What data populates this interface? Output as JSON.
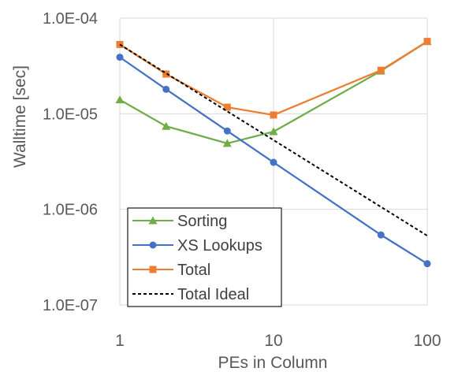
{
  "chart_data": {
    "type": "line",
    "xlabel": "PEs in Column",
    "ylabel": "Walltime [sec]",
    "x_scale": "log",
    "y_scale": "log",
    "xlim": [
      1,
      100
    ],
    "ylim": [
      1e-07,
      0.0001
    ],
    "x_ticks": [
      1,
      10,
      100
    ],
    "x_tick_labels": [
      "1",
      "10",
      "100"
    ],
    "y_ticks": [
      1e-07,
      1e-06,
      1e-05,
      0.0001
    ],
    "y_tick_labels": [
      "1.0E-07",
      "1.0E-06",
      "1.0E-05",
      "1.0E-04"
    ],
    "grid": true,
    "legend_position": "bottom-left",
    "series": [
      {
        "name": "Sorting",
        "color": "#70ad47",
        "marker": "triangle",
        "dash": "solid",
        "x": [
          1,
          2,
          5,
          10,
          50,
          100
        ],
        "y": [
          1.4e-05,
          7.4e-06,
          4.9e-06,
          6.5e-06,
          2.8e-05,
          5.7e-05
        ]
      },
      {
        "name": "XS Lookups",
        "color": "#4472c4",
        "marker": "circle",
        "dash": "solid",
        "x": [
          1,
          2,
          5,
          10,
          50,
          100
        ],
        "y": [
          3.9e-05,
          1.8e-05,
          6.6e-06,
          3.1e-06,
          5.4e-07,
          2.7e-07
        ]
      },
      {
        "name": "Total",
        "color": "#ed7d31",
        "marker": "square",
        "dash": "solid",
        "x": [
          1,
          2,
          5,
          10,
          50,
          100
        ],
        "y": [
          5.3e-05,
          2.6e-05,
          1.17e-05,
          9.7e-06,
          2.85e-05,
          5.7e-05
        ]
      },
      {
        "name": "Total Ideal",
        "color": "#000000",
        "marker": "none",
        "dash": "dashed",
        "x": [
          1,
          100
        ],
        "y": [
          5.3e-05,
          5.3e-07
        ]
      }
    ]
  }
}
